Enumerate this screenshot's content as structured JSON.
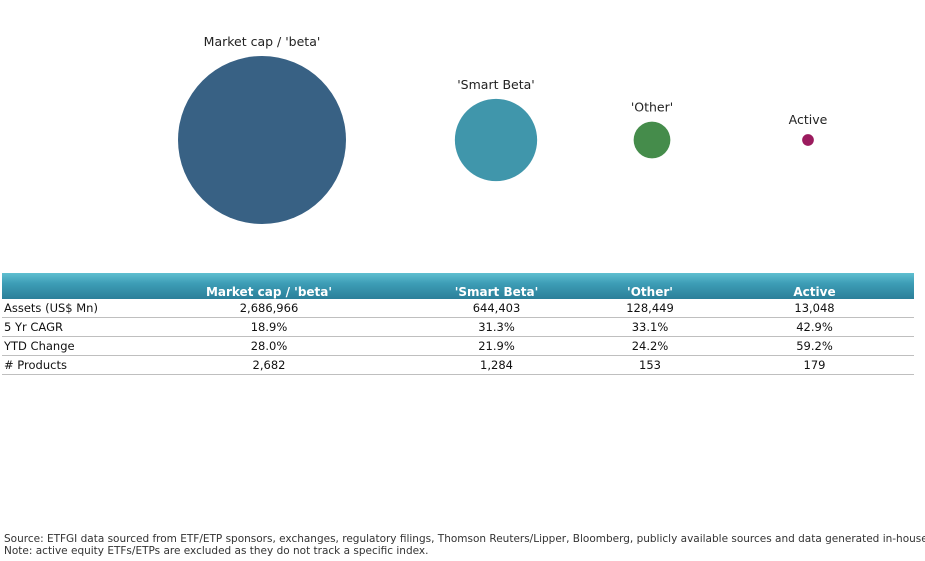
{
  "chart_data": {
    "type": "bubble",
    "title": "",
    "categories": [
      "Market cap / 'beta'",
      "'Smart Beta'",
      "'Other'",
      "Active"
    ],
    "values": [
      2686966,
      644403,
      128449,
      13048
    ],
    "colors": [
      "#386184",
      "#4096ab",
      "#458c4b",
      "#9b1b5e"
    ]
  },
  "table": {
    "columns": [
      "",
      "Market cap / 'beta'",
      "'Smart Beta'",
      "'Other'",
      "Active"
    ],
    "rows": [
      {
        "label": "Assets (US$ Mn)",
        "values": [
          "2,686,966",
          "644,403",
          "128,449",
          "13,048"
        ]
      },
      {
        "label": "5 Yr CAGR",
        "values": [
          "18.9%",
          "31.3%",
          "33.1%",
          "42.9%"
        ]
      },
      {
        "label": "YTD Change",
        "values": [
          "28.0%",
          "21.9%",
          "24.2%",
          "59.2%"
        ]
      },
      {
        "label": "# Products",
        "values": [
          "2,682",
          "1,284",
          "153",
          "179"
        ]
      }
    ]
  },
  "footnotes": {
    "source": "Source: ETFGI data sourced from ETF/ETP sponsors, exchanges, regulatory filings, Thomson Reuters/Lipper, Bloomberg, publicly available sources and data generated in-house.",
    "note": "Note: active equity ETFs/ETPs are excluded as they do not track a specific index."
  }
}
